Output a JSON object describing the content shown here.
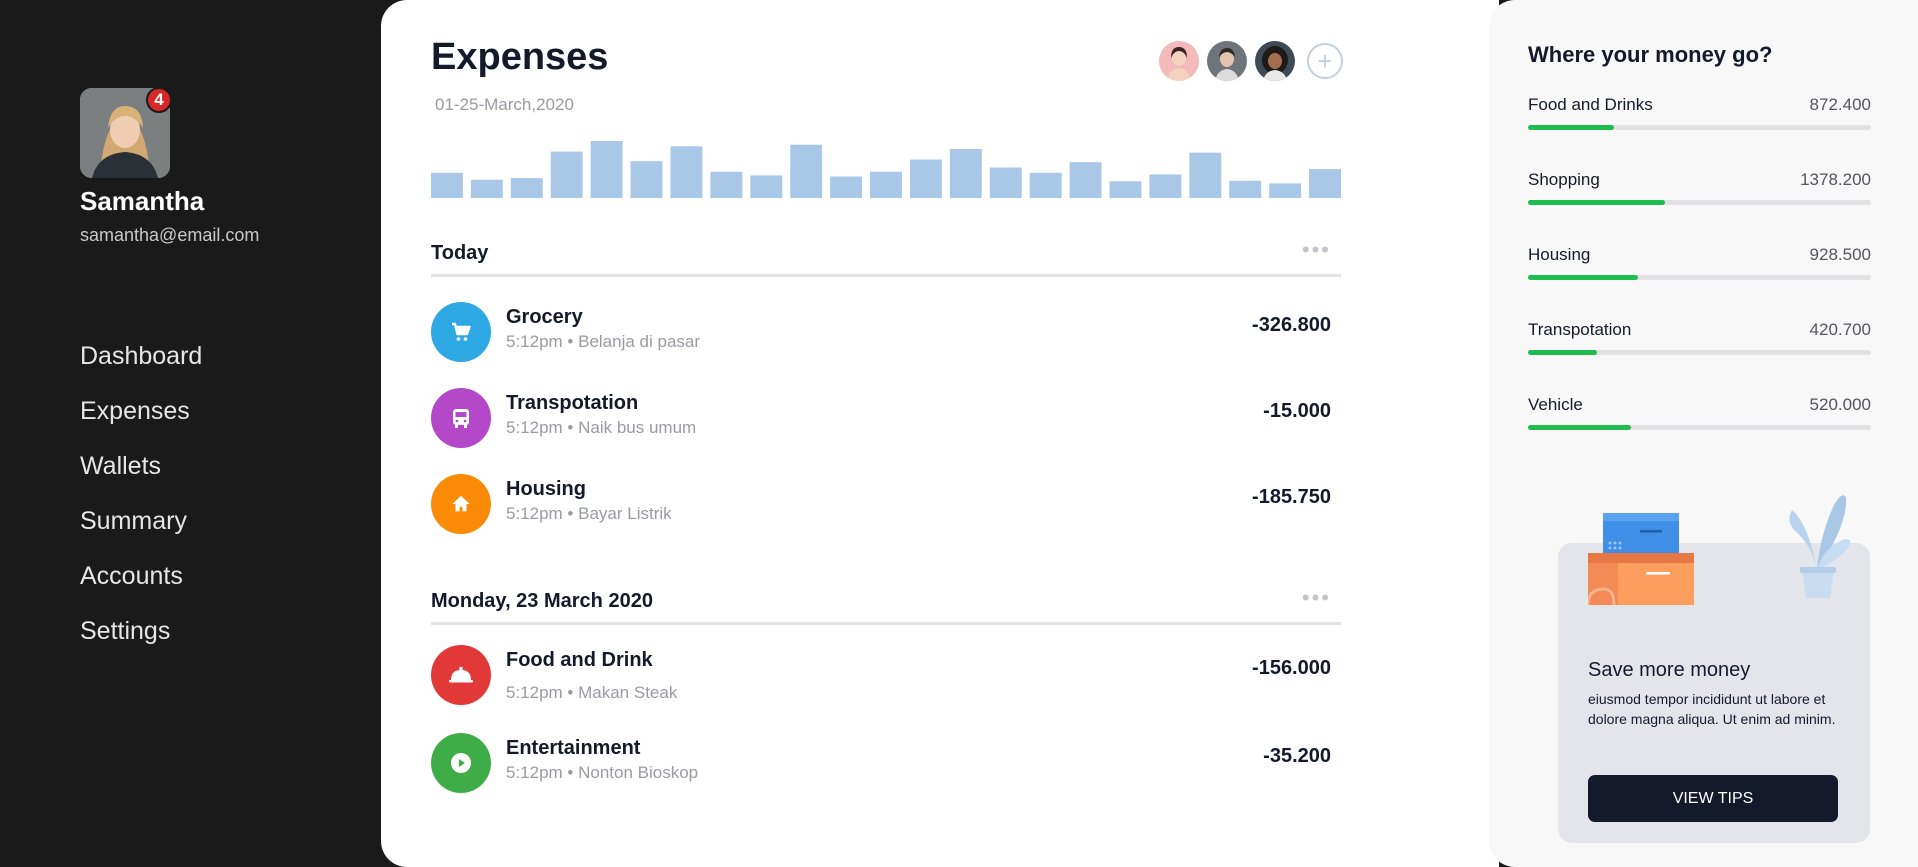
{
  "user": {
    "name": "Samantha",
    "email": "samantha@email.com",
    "notifications": "4"
  },
  "nav": [
    "Dashboard",
    "Expenses",
    "Wallets",
    "Summary",
    "Accounts",
    "Settings"
  ],
  "main": {
    "title": "Expenses",
    "date_range": "01-25-March,2020",
    "add_member": "+",
    "daily_spend": [
      0.4,
      0.27,
      0.3,
      0.8,
      1.0,
      0.62,
      0.9,
      0.42,
      0.35,
      0.93,
      0.33,
      0.42,
      0.65,
      0.85,
      0.5,
      0.4,
      0.6,
      0.24,
      0.37,
      0.78,
      0.25,
      0.2,
      0.47
    ],
    "sections": [
      {
        "label": "Today",
        "dots": "•••",
        "items": [
          {
            "name": "Grocery",
            "sub": "5:12pm • Belanja di pasar",
            "amount": "-326.800",
            "icon": "cart-icon",
            "color": "#2ea8e3"
          },
          {
            "name": "Transpotation",
            "sub": "5:12pm • Naik bus umum",
            "amount": "-15.000",
            "icon": "bus-icon",
            "color": "#b348c9"
          },
          {
            "name": "Housing",
            "sub": "5:12pm • Bayar Listrik",
            "amount": "-185.750",
            "icon": "home-icon",
            "color": "#fb8a06"
          }
        ]
      },
      {
        "label": "Monday, 23 March 2020",
        "dots": "•••",
        "items": [
          {
            "name": "Food and Drink",
            "sub": "5:12pm • Makan Steak",
            "amount": "-156.000",
            "icon": "cloche-icon",
            "color": "#e23838"
          },
          {
            "name": "Entertainment",
            "sub": "5:12pm • Nonton Bioskop",
            "amount": "-35.200",
            "icon": "play-icon",
            "color": "#3fad47"
          }
        ]
      }
    ]
  },
  "right": {
    "title": "Where your money go?",
    "categories": [
      {
        "name": "Food and Drinks",
        "value": "872.400",
        "fraction": 0.25
      },
      {
        "name": "Shopping",
        "value": "1378.200",
        "fraction": 0.4
      },
      {
        "name": "Housing",
        "value": "928.500",
        "fraction": 0.32
      },
      {
        "name": "Transpotation",
        "value": "420.700",
        "fraction": 0.2
      },
      {
        "name": "Vehicle",
        "value": "520.000",
        "fraction": 0.3
      }
    ],
    "tips": {
      "title": "Save more money",
      "body": "eiusmod tempor incididunt ut labore et dolore magna aliqua. Ut enim ad minim.",
      "button": "VIEW TIPS"
    }
  },
  "colors": {
    "bar": "#a9c8e8",
    "progress": "#1fbd4f",
    "dark": "#14192b"
  }
}
